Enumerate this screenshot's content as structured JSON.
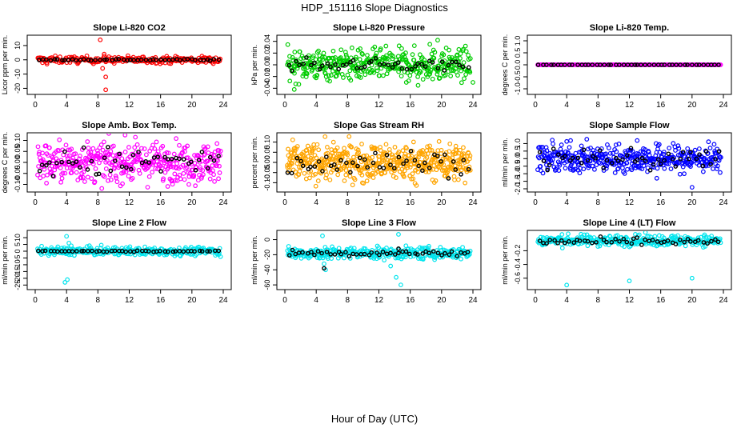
{
  "figure": {
    "title": "HDP_151116  Slope Diagnostics",
    "xlabel": "Hour of Day (UTC)"
  },
  "chart_data": [
    {
      "type": "scatter",
      "title": "Slope Li-820 CO2",
      "ylabel": "Licor ppm per min.",
      "xlim": [
        0,
        24
      ],
      "xticks": [
        0,
        4,
        8,
        12,
        16,
        20,
        24
      ],
      "ylim": [
        -22,
        15
      ],
      "yticks": [
        -20,
        -10,
        0,
        10
      ],
      "series": [
        {
          "name": "all",
          "color": "#ff0000",
          "points": [
            [
              8.3,
              14
            ],
            [
              9.0,
              -12
            ],
            [
              9.0,
              -21
            ],
            [
              8.6,
              -6
            ],
            [
              8.8,
              4
            ],
            [
              1.5,
              -3
            ],
            [
              5.5,
              -2
            ],
            [
              21.5,
              -1
            ]
          ],
          "fill": {
            "n": 240,
            "center": 0.0,
            "spread": 1.2
          }
        },
        {
          "name": "mean",
          "color": "#000000",
          "fill": {
            "n": 48,
            "center": 0.0,
            "spread": 0.3
          }
        }
      ]
    },
    {
      "type": "scatter",
      "title": "Slope Li-820 Pressure",
      "ylabel": "kPa per min.",
      "xlim": [
        0,
        24
      ],
      "xticks": [
        0,
        4,
        8,
        12,
        16,
        20,
        24
      ],
      "ylim": [
        -0.045,
        0.045
      ],
      "yticks": [
        -0.04,
        -0.02,
        0.0,
        0.02,
        0.04
      ],
      "series": [
        {
          "name": "all",
          "color": "#00cc00",
          "points": [
            [
              19.5,
              0.042
            ],
            [
              1.2,
              -0.042
            ],
            [
              17.0,
              -0.035
            ],
            [
              24.0,
              -0.03
            ],
            [
              18.5,
              0.035
            ],
            [
              15.5,
              -0.03
            ]
          ],
          "fill": {
            "n": 420,
            "center": 0.0,
            "spread": 0.013
          }
        },
        {
          "name": "mean",
          "color": "#000000",
          "fill": {
            "n": 48,
            "center": 0.0,
            "spread": 0.005
          }
        }
      ]
    },
    {
      "type": "scatter",
      "title": "Slope Li-820 Temp.",
      "ylabel": "degrees C per min.",
      "xlim": [
        0,
        24
      ],
      "xticks": [
        0,
        4,
        8,
        12,
        16,
        20,
        24
      ],
      "ylim": [
        -1.1,
        1.1
      ],
      "yticks": [
        -1.0,
        -0.5,
        0.0,
        0.5,
        1.0
      ],
      "series": [
        {
          "name": "all",
          "color": "#ff00ff",
          "fill": {
            "n": 200,
            "center": 0.0,
            "spread": 0.0
          }
        },
        {
          "name": "mean",
          "color": "#000000",
          "fill": {
            "n": 48,
            "center": 0.0,
            "spread": 0.0
          }
        }
      ]
    },
    {
      "type": "scatter",
      "title": "Slope Amb. Box Temp.",
      "ylabel": "degrees C per min.",
      "xlim": [
        0,
        24
      ],
      "xticks": [
        0,
        4,
        8,
        12,
        16,
        20,
        24
      ],
      "ylim": [
        -0.12,
        0.12
      ],
      "yticks": [
        -0.1,
        -0.05,
        0.0,
        0.05,
        0.1
      ],
      "series": [
        {
          "name": "all",
          "color": "#ff00ff",
          "fill": {
            "n": 420,
            "center": 0.0,
            "spread": 0.045
          }
        },
        {
          "name": "mean",
          "color": "#000000",
          "fill": {
            "n": 48,
            "center": 0.0,
            "spread": 0.035
          }
        }
      ]
    },
    {
      "type": "scatter",
      "title": "Slope Gas Stream RH",
      "ylabel": "percent per min.",
      "xlim": [
        0,
        24
      ],
      "xticks": [
        0,
        4,
        8,
        12,
        16,
        20,
        24
      ],
      "ylim": [
        -0.13,
        0.13
      ],
      "yticks": [
        -0.1,
        -0.05,
        0.0,
        0.05,
        0.1
      ],
      "series": [
        {
          "name": "all",
          "color": "#ffa500",
          "fill": {
            "n": 520,
            "center": 0.0,
            "spread": 0.045
          }
        },
        {
          "name": "mean",
          "color": "#000000",
          "fill": {
            "n": 48,
            "center": 0.0,
            "spread": 0.03
          }
        }
      ]
    },
    {
      "type": "scatter",
      "title": "Slope Sample Flow",
      "ylabel": "ml/min per min.",
      "xlim": [
        0,
        24
      ],
      "xticks": [
        0,
        4,
        8,
        12,
        16,
        20,
        24
      ],
      "ylim": [
        -2.0,
        1.5
      ],
      "yticks": [
        -2.0,
        -1.5,
        -1.0,
        -0.5,
        0.0,
        0.5,
        1.0
      ],
      "series": [
        {
          "name": "all",
          "color": "#0000ff",
          "points": [
            [
              20.0,
              -1.9
            ],
            [
              15.5,
              -1.3
            ],
            [
              4.5,
              1.2
            ],
            [
              13.0,
              1.2
            ],
            [
              19.0,
              -1.0
            ]
          ],
          "fill": {
            "n": 420,
            "center": 0.0,
            "spread": 0.45
          }
        },
        {
          "name": "mean",
          "color": "#000000",
          "fill": {
            "n": 48,
            "center": 0.0,
            "spread": 0.35
          }
        }
      ]
    },
    {
      "type": "scatter",
      "title": "Slope Line 2 Flow",
      "ylabel": "ml/min per min.",
      "xlim": [
        0,
        24
      ],
      "xticks": [
        0,
        4,
        8,
        12,
        16,
        20,
        24
      ],
      "ylim": [
        -26,
        13
      ],
      "yticks": [
        -25,
        -20,
        -15,
        -10,
        -5,
        0,
        5,
        10
      ],
      "series": [
        {
          "name": "all",
          "color": "#00e5ee",
          "points": [
            [
              4.0,
              11
            ],
            [
              4.1,
              -21
            ],
            [
              3.8,
              -23
            ],
            [
              4.3,
              6
            ],
            [
              4.6,
              4
            ],
            [
              5.0,
              -3
            ]
          ],
          "fill": {
            "n": 320,
            "center": 0.0,
            "spread": 1.5
          }
        },
        {
          "name": "mean",
          "color": "#000000",
          "fill": {
            "n": 48,
            "center": 0.0,
            "spread": 0.2
          }
        }
      ]
    },
    {
      "type": "scatter",
      "title": "Slope Line 3 Flow",
      "ylabel": "ml/min per min.",
      "xlim": [
        0,
        24
      ],
      "xticks": [
        0,
        4,
        8,
        12,
        16,
        20,
        24
      ],
      "ylim": [
        -62,
        8
      ],
      "yticks": [
        -60,
        -40,
        -20,
        0
      ],
      "series": [
        {
          "name": "all",
          "color": "#00e5ee",
          "points": [
            [
              4.8,
              5
            ],
            [
              5.0,
              -32
            ],
            [
              5.2,
              -40
            ],
            [
              5.5,
              -25
            ],
            [
              14.5,
              7
            ],
            [
              14.2,
              -50
            ],
            [
              13.5,
              -35
            ],
            [
              14.8,
              -60
            ],
            [
              15.3,
              -20
            ],
            [
              4.6,
              -15
            ]
          ],
          "fill": {
            "n": 320,
            "center": -18,
            "spread": 4
          }
        },
        {
          "name": "mean",
          "color": "#000000",
          "points": [
            [
              5.0,
              -38
            ],
            [
              14.5,
              -12
            ]
          ],
          "fill": {
            "n": 48,
            "center": -18,
            "spread": 2
          }
        }
      ]
    },
    {
      "type": "scatter",
      "title": "Slope Line 4 (LT) Flow",
      "ylabel": "ml/min per min.",
      "xlim": [
        0,
        24
      ],
      "xticks": [
        0,
        4,
        8,
        12,
        16,
        20,
        24
      ],
      "ylim": [
        -0.72,
        0.05
      ],
      "yticks": [
        -0.6,
        -0.4,
        -0.2
      ],
      "series": [
        {
          "name": "all",
          "color": "#00e5ee",
          "points": [
            [
              4.0,
              -0.7
            ],
            [
              12.0,
              -0.64
            ],
            [
              20.0,
              -0.6
            ]
          ],
          "fill": {
            "n": 320,
            "center": -0.05,
            "spread": 0.04
          }
        },
        {
          "name": "mean",
          "color": "#000000",
          "fill": {
            "n": 48,
            "center": -0.07,
            "spread": 0.025
          }
        }
      ]
    }
  ]
}
